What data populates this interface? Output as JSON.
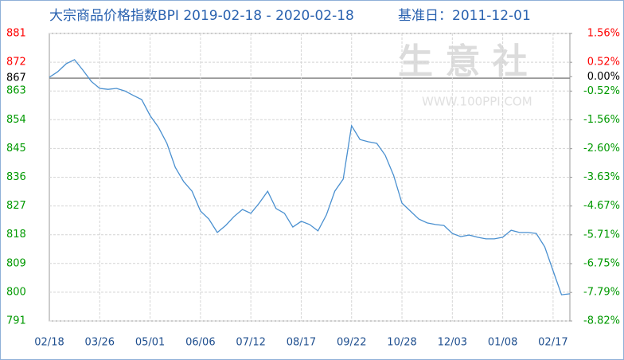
{
  "chart_data": {
    "type": "line",
    "title": "大宗商品价格指数BPI 2019-02-18 - 2020-02-18",
    "subtitle": "基准日：2011-12-01",
    "watermark": "生 意 社",
    "watermark_url": "WWW.100PPI.COM",
    "categories": [
      "02/18",
      null,
      null,
      null,
      null,
      null,
      "03/26",
      null,
      null,
      null,
      null,
      null,
      "05/01",
      null,
      null,
      null,
      null,
      null,
      "06/06",
      null,
      null,
      null,
      null,
      null,
      "07/12",
      null,
      null,
      null,
      null,
      null,
      "08/17",
      null,
      null,
      null,
      null,
      null,
      "09/22",
      null,
      null,
      null,
      null,
      null,
      "10/28",
      null,
      null,
      null,
      null,
      null,
      "12/03",
      null,
      null,
      null,
      null,
      null,
      "01/08",
      null,
      null,
      null,
      null,
      null,
      "02/17",
      null,
      null
    ],
    "series": [
      {
        "name": "BPI",
        "color": "#4a90d0",
        "values": [
          867.3,
          869,
          871.5,
          872.8,
          869.5,
          866,
          863.8,
          863.5,
          863.8,
          863,
          861.6,
          860.3,
          855.3,
          851.6,
          846.6,
          839.1,
          834.6,
          831.6,
          825.4,
          822.9,
          818.7,
          820.9,
          823.7,
          825.9,
          824.7,
          827.9,
          831.6,
          826.2,
          824.7,
          820.4,
          822.2,
          821.2,
          819.2,
          824.2,
          831.6,
          835.4,
          852.1,
          847.8,
          847.1,
          846.6,
          842.9,
          836.6,
          827.9,
          825.4,
          822.9,
          821.7,
          821.2,
          820.9,
          818.4,
          817.4,
          817.9,
          817.2,
          816.7,
          816.7,
          817.2,
          819.4,
          818.7,
          818.7,
          818.4,
          814.2,
          806.7,
          799.2,
          799.5
        ]
      }
    ],
    "ylim": [
      791,
      881
    ],
    "yticks": [
      791,
      800,
      809,
      818,
      827,
      836,
      845,
      854,
      863,
      867,
      872,
      881
    ],
    "y2lim": [
      -8.82,
      1.56
    ],
    "y2ticks": [
      {
        "value": -8.82,
        "label": "-8.82%"
      },
      {
        "value": -7.79,
        "label": "-7.79%"
      },
      {
        "value": -6.75,
        "label": "-6.75%"
      },
      {
        "value": -5.71,
        "label": "-5.71%"
      },
      {
        "value": -4.67,
        "label": "-4.67%"
      },
      {
        "value": -3.63,
        "label": "-3.63%"
      },
      {
        "value": -2.6,
        "label": "-2.60%"
      },
      {
        "value": -1.56,
        "label": "-1.56%"
      },
      {
        "value": -0.52,
        "label": "-0.52%"
      },
      {
        "value": 0,
        "label": "0.00%"
      },
      {
        "value": 0.52,
        "label": "0.52%"
      },
      {
        "value": 1.56,
        "label": "1.56%"
      }
    ],
    "reference_line": 867,
    "up_color": "#ff0000",
    "down_color": "#009900",
    "flat_color": "#000000",
    "grid": true
  }
}
